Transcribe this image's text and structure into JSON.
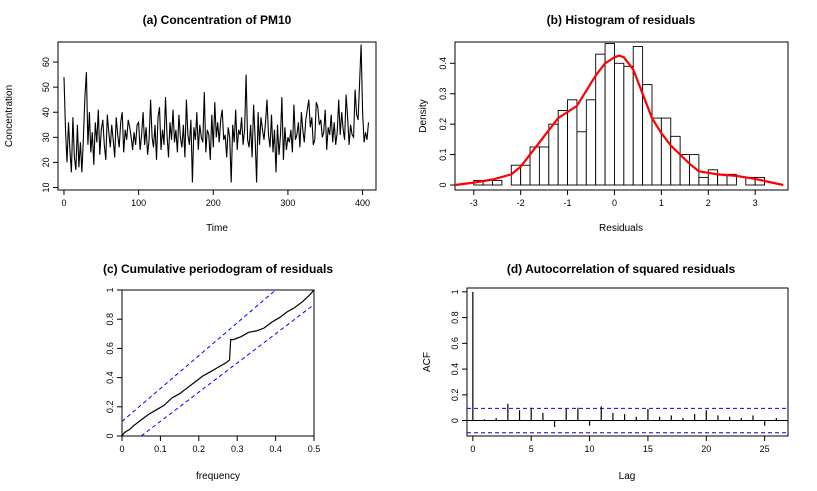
{
  "chart_data": [
    {
      "type": "line",
      "title": "(a) Concentration of PM10",
      "xlabel": "Time",
      "ylabel": "Concentration",
      "xlim": [
        -8,
        418
      ],
      "ylim": [
        9,
        68
      ],
      "xticks": [
        0,
        100,
        200,
        300,
        400
      ],
      "yticks": [
        10,
        20,
        30,
        40,
        50,
        60
      ],
      "series": [
        {
          "x": [
            0,
            2,
            4,
            6,
            8,
            10,
            12,
            14,
            16,
            18,
            20,
            22,
            24,
            26,
            28,
            30,
            32,
            34,
            36,
            38,
            40,
            42,
            44,
            46,
            48,
            50,
            52,
            54,
            56,
            58,
            60,
            62,
            64,
            66,
            68,
            70,
            72,
            74,
            76,
            78,
            80,
            82,
            84,
            86,
            88,
            90,
            92,
            94,
            96,
            98,
            100,
            102,
            104,
            106,
            108,
            110,
            112,
            114,
            116,
            118,
            120,
            122,
            124,
            126,
            128,
            130,
            132,
            134,
            136,
            138,
            140,
            142,
            144,
            146,
            148,
            150,
            152,
            154,
            156,
            158,
            160,
            162,
            164,
            166,
            168,
            170,
            172,
            174,
            176,
            178,
            180,
            182,
            184,
            186,
            188,
            190,
            192,
            194,
            196,
            198,
            200,
            202,
            204,
            206,
            208,
            210,
            212,
            214,
            216,
            218,
            220,
            222,
            224,
            226,
            228,
            230,
            232,
            234,
            236,
            238,
            240,
            242,
            244,
            246,
            248,
            250,
            252,
            254,
            256,
            258,
            260,
            262,
            264,
            266,
            268,
            270,
            272,
            274,
            276,
            278,
            280,
            282,
            284,
            286,
            288,
            290,
            292,
            294,
            296,
            298,
            300,
            302,
            304,
            306,
            308,
            310,
            312,
            314,
            316,
            318,
            320,
            322,
            324,
            326,
            328,
            330,
            332,
            334,
            336,
            338,
            340,
            342,
            344,
            346,
            348,
            350,
            352,
            354,
            356,
            358,
            360,
            362,
            364,
            366,
            368,
            370,
            372,
            374,
            376,
            378,
            380,
            382,
            384,
            386,
            388,
            390,
            392,
            394,
            396,
            398,
            400,
            402,
            404,
            406,
            408
          ],
          "values": [
            54,
            33,
            20,
            36,
            25,
            16,
            38,
            22,
            17,
            35,
            18,
            28,
            16,
            30,
            46,
            56,
            27,
            40,
            24,
            32,
            19,
            36,
            28,
            41,
            23,
            33,
            37,
            27,
            21,
            39,
            32,
            26,
            35,
            29,
            22,
            38,
            31,
            26,
            36,
            40,
            24,
            33,
            29,
            37,
            34,
            30,
            25,
            32,
            27,
            35,
            36,
            25,
            31,
            40,
            27,
            34,
            23,
            29,
            45,
            30,
            26,
            35,
            21,
            38,
            42,
            25,
            33,
            27,
            46,
            31,
            22,
            36,
            29,
            41,
            28,
            33,
            24,
            39,
            30,
            26,
            35,
            22,
            45,
            31,
            27,
            37,
            12,
            34,
            29,
            40,
            25,
            35,
            30,
            28,
            48,
            24,
            33,
            31,
            21,
            39,
            26,
            44,
            30,
            36,
            28,
            37,
            41,
            29,
            31,
            22,
            34,
            30,
            12,
            35,
            28,
            41,
            25,
            33,
            31,
            38,
            27,
            33,
            55,
            29,
            26,
            35,
            22,
            43,
            30,
            12,
            40,
            27,
            38,
            33,
            29,
            36,
            45,
            31,
            26,
            39,
            24,
            33,
            16,
            35,
            23,
            31,
            46,
            21,
            34,
            25,
            30,
            28,
            33,
            24,
            43,
            29,
            31,
            36,
            26,
            40,
            33,
            28,
            37,
            41,
            45,
            34,
            38,
            27,
            29,
            44,
            42,
            35,
            37,
            30,
            32,
            41,
            25,
            34,
            31,
            39,
            28,
            36,
            27,
            32,
            45,
            31,
            40,
            33,
            29,
            47,
            38,
            27,
            35,
            31,
            30,
            49,
            39,
            37,
            52,
            67,
            40,
            28,
            32,
            29,
            36
          ]
        }
      ]
    },
    {
      "type": "bar",
      "title": "(b) Histogram of residuals",
      "xlabel": "Residuals",
      "ylabel": "Density",
      "xlim": [
        -3.4,
        3.7
      ],
      "ylim": [
        0,
        0.47
      ],
      "xticks": [
        -3,
        -2,
        -1,
        0,
        1,
        2,
        3
      ],
      "yticks": [
        0.0,
        0.1,
        0.2,
        0.3,
        0.4
      ],
      "bin_edges": [
        -3.0,
        -2.8,
        -2.6,
        -2.4,
        -2.2,
        -2.0,
        -1.8,
        -1.6,
        -1.4,
        -1.2,
        -1.0,
        -0.8,
        -0.6,
        -0.4,
        -0.2,
        0.0,
        0.2,
        0.4,
        0.6,
        0.8,
        1.0,
        1.2,
        1.4,
        1.6,
        1.8,
        2.0,
        2.2,
        2.4,
        2.6,
        2.8,
        3.0,
        3.2,
        3.4
      ],
      "values": [
        0.015,
        0.015,
        0.015,
        0.0,
        0.065,
        0.065,
        0.125,
        0.125,
        0.2,
        0.245,
        0.28,
        0.175,
        0.28,
        0.43,
        0.465,
        0.4,
        0.39,
        0.455,
        0.33,
        0.22,
        0.22,
        0.16,
        0.1,
        0.1,
        0.025,
        0.05,
        0.035,
        0.035,
        0.0,
        0.025,
        0.025,
        0.0
      ],
      "series": [
        {
          "type": "line",
          "color": "#ff0000",
          "x": [
            -3.4,
            -3.0,
            -2.6,
            -2.2,
            -2.0,
            -1.8,
            -1.6,
            -1.4,
            -1.2,
            -1.0,
            -0.8,
            -0.6,
            -0.4,
            -0.2,
            0.0,
            0.1,
            0.2,
            0.4,
            0.6,
            0.8,
            1.0,
            1.2,
            1.4,
            1.6,
            1.8,
            2.0,
            2.2,
            2.6,
            3.0,
            3.3,
            3.6
          ],
          "values": [
            0.0,
            0.008,
            0.018,
            0.035,
            0.06,
            0.1,
            0.14,
            0.18,
            0.22,
            0.24,
            0.26,
            0.31,
            0.36,
            0.4,
            0.42,
            0.425,
            0.42,
            0.38,
            0.3,
            0.22,
            0.17,
            0.13,
            0.1,
            0.07,
            0.045,
            0.04,
            0.035,
            0.03,
            0.02,
            0.01,
            0.0
          ]
        }
      ]
    },
    {
      "type": "line",
      "title": "(c) Cumulative periodogram of residuals",
      "xlabel": "frequency",
      "ylabel": "",
      "xlim": [
        0,
        0.5
      ],
      "ylim": [
        0,
        1
      ],
      "xticks": [
        0.0,
        0.1,
        0.2,
        0.3,
        0.4,
        0.5
      ],
      "yticks": [
        0.0,
        0.2,
        0.4,
        0.6,
        0.8,
        1.0
      ],
      "series": [
        {
          "color": "#000000",
          "x": [
            0,
            0.005,
            0.01,
            0.02,
            0.03,
            0.05,
            0.07,
            0.09,
            0.11,
            0.13,
            0.15,
            0.17,
            0.19,
            0.21,
            0.23,
            0.25,
            0.27,
            0.28,
            0.283,
            0.29,
            0.31,
            0.33,
            0.35,
            0.37,
            0.39,
            0.41,
            0.43,
            0.45,
            0.47,
            0.49,
            0.5
          ],
          "values": [
            0,
            0.02,
            0.03,
            0.045,
            0.07,
            0.11,
            0.15,
            0.18,
            0.21,
            0.26,
            0.29,
            0.33,
            0.37,
            0.41,
            0.44,
            0.47,
            0.5,
            0.52,
            0.66,
            0.66,
            0.68,
            0.71,
            0.72,
            0.74,
            0.78,
            0.81,
            0.85,
            0.88,
            0.92,
            0.97,
            1.0
          ]
        },
        {
          "color": "#0000ff",
          "style": "dashed",
          "x": [
            0,
            0.4
          ],
          "values": [
            0.1,
            1.0
          ]
        },
        {
          "color": "#0000ff",
          "style": "dashed",
          "x": [
            0.05,
            0.5
          ],
          "values": [
            0.0,
            0.9
          ]
        }
      ]
    },
    {
      "type": "bar",
      "title": "(d) Autocorrelation of squared residuals",
      "xlabel": "Lag",
      "ylabel": "ACF",
      "xlim": [
        -0.5,
        27
      ],
      "ylim": [
        -0.12,
        1.03
      ],
      "xticks": [
        0,
        5,
        10,
        15,
        20,
        25
      ],
      "yticks": [
        0.0,
        0.2,
        0.4,
        0.6,
        0.8,
        1.0
      ],
      "lags": [
        0,
        1,
        2,
        3,
        4,
        5,
        6,
        7,
        8,
        9,
        10,
        11,
        12,
        13,
        14,
        15,
        16,
        17,
        18,
        19,
        20,
        21,
        22,
        23,
        24,
        25,
        26
      ],
      "values": [
        1.0,
        0.01,
        0.02,
        0.13,
        0.08,
        0.1,
        0.06,
        -0.05,
        0.09,
        0.1,
        -0.04,
        0.11,
        0.06,
        0.05,
        0.03,
        0.09,
        0.03,
        0.04,
        0.02,
        0.05,
        0.08,
        0.04,
        0.03,
        0.02,
        0.04,
        -0.04,
        0.02
      ],
      "conf_band": [
        0.095,
        -0.095
      ]
    }
  ]
}
